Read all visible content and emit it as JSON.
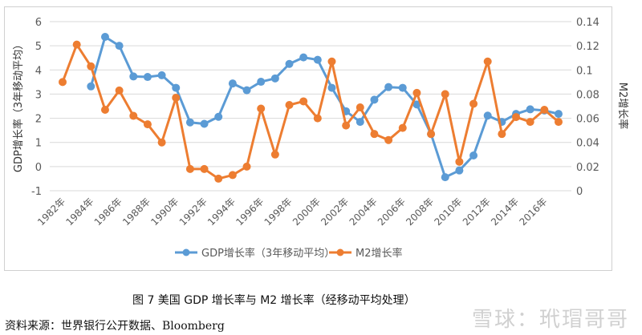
{
  "chart_data": {
    "type": "line",
    "y_left_label": "GDP增长率（3年移动平均）",
    "y_right_label": "M2增长率",
    "y_left_lim": [
      -1,
      6
    ],
    "y_left_ticks": [
      "-1",
      "0",
      "1",
      "2",
      "3",
      "4",
      "5",
      "6"
    ],
    "y_right_lim": [
      0,
      0.14
    ],
    "y_right_ticks": [
      "0",
      "0.02",
      "0.04",
      "0.06",
      "0.08",
      "0.1",
      "0.12",
      "0.14"
    ],
    "x": [
      1982,
      1983,
      1984,
      1985,
      1986,
      1987,
      1988,
      1989,
      1990,
      1991,
      1992,
      1993,
      1994,
      1995,
      1996,
      1997,
      1998,
      1999,
      2000,
      2001,
      2002,
      2003,
      2004,
      2005,
      2006,
      2007,
      2008,
      2009,
      2010,
      2011,
      2012,
      2013,
      2014,
      2015,
      2016,
      2017
    ],
    "x_tick_labels": [
      "1982年",
      "1984年",
      "1986年",
      "1988年",
      "1990年",
      "1992年",
      "1994年",
      "1996年",
      "1998年",
      "2000年",
      "2002年",
      "2004年",
      "2006年",
      "2008年",
      "2010年",
      "2012年",
      "2014年",
      "2016年"
    ],
    "grid": true,
    "legend_position": "bottom",
    "series": [
      {
        "name": "GDP增长率（3年移动平均）",
        "axis": "left",
        "color": "#5b9bd5",
        "values": [
          null,
          null,
          3.32,
          5.37,
          5.0,
          3.73,
          3.71,
          3.78,
          3.26,
          1.83,
          1.77,
          2.06,
          3.44,
          3.16,
          3.51,
          3.65,
          4.25,
          4.52,
          4.42,
          3.26,
          2.29,
          1.85,
          2.77,
          3.29,
          3.26,
          2.57,
          1.35,
          -0.44,
          -0.16,
          0.46,
          2.11,
          1.85,
          2.18,
          2.37,
          2.32,
          2.18
        ]
      },
      {
        "name": "M2增长率",
        "axis": "right",
        "color": "#ed7d31",
        "values": [
          0.09,
          0.121,
          0.103,
          0.067,
          0.083,
          0.062,
          0.055,
          0.04,
          0.077,
          0.018,
          0.018,
          0.01,
          0.013,
          0.02,
          0.068,
          0.03,
          0.071,
          0.074,
          0.06,
          0.107,
          0.054,
          0.069,
          0.047,
          0.042,
          0.052,
          0.081,
          0.047,
          0.08,
          0.024,
          0.072,
          0.107,
          0.047,
          0.061,
          0.057,
          0.067,
          0.057
        ]
      }
    ]
  },
  "caption": "图 7 美国 GDP 增长率与 M2 增长率（经移动平均处理）",
  "source": "资料来源：世界银行公开数据、Bloomberg",
  "watermark": "雪球：玳瑁哥哥"
}
